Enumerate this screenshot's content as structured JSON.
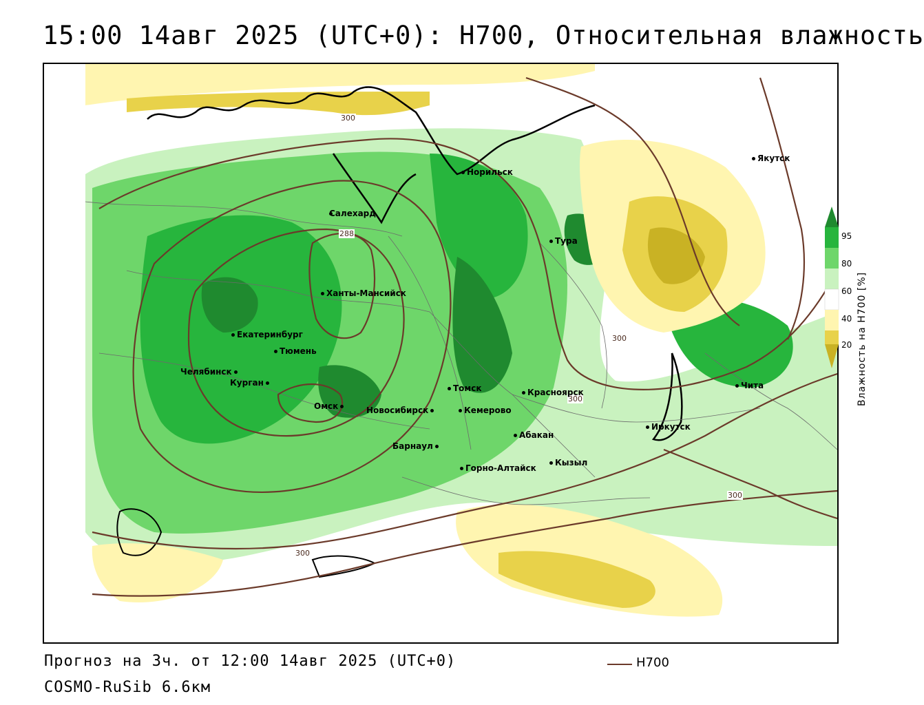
{
  "title": "15:00 14авг 2025 (UTC+0): H700, Относительная влажность",
  "footer": {
    "forecast": "Прогноз на 3ч. от 12:00 14авг 2025 (UTC+0)",
    "model": "COSMO-RuSib 6.6км"
  },
  "legend": {
    "h700_label": "H700",
    "h700_color": "#6b3a2a"
  },
  "colorbar": {
    "title": "Влажность на H700 [%]",
    "ticks": [
      "95",
      "80",
      "60",
      "40",
      "20"
    ],
    "colors": [
      "#1f8a2f",
      "#27b53d",
      "#6ed66a",
      "#c9f2bf",
      "#ffffff",
      "#fff5b0",
      "#e8d24a",
      "#c9b224"
    ]
  },
  "cities": [
    {
      "name": "Салехард"
    },
    {
      "name": "Норильск"
    },
    {
      "name": "Якутск"
    },
    {
      "name": "Тура"
    },
    {
      "name": "Ханты-Мансийск"
    },
    {
      "name": "Екатеринбург"
    },
    {
      "name": "Тюмень"
    },
    {
      "name": "Челябинск"
    },
    {
      "name": "Курган"
    },
    {
      "name": "Омск"
    },
    {
      "name": "Новосибирск"
    },
    {
      "name": "Томск"
    },
    {
      "name": "Кемерово"
    },
    {
      "name": "Красноярск"
    },
    {
      "name": "Абакан"
    },
    {
      "name": "Барнаул"
    },
    {
      "name": "Горно-Алтайск"
    },
    {
      "name": "Кызыл"
    },
    {
      "name": "Иркутск"
    },
    {
      "name": "Чита"
    }
  ],
  "isolines": [
    "300",
    "288",
    "300",
    "300",
    "300",
    "300"
  ]
}
